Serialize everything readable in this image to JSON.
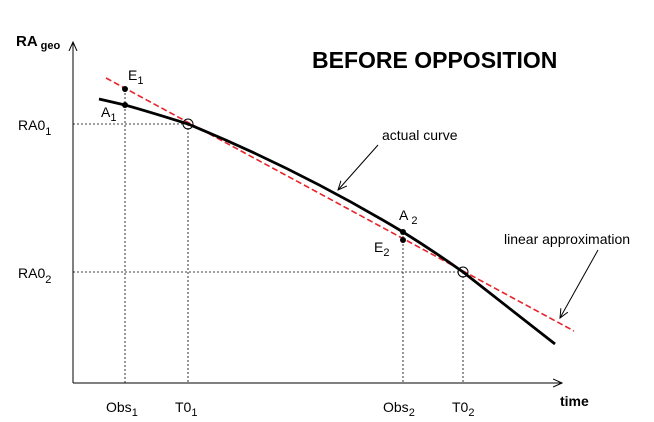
{
  "heading": "BEFORE OPPOSITION",
  "y_axis": {
    "label": "RA",
    "subscript": "geo"
  },
  "x_axis": {
    "label": "time"
  },
  "y_ticks": [
    {
      "main": "RA0",
      "sub": "1"
    },
    {
      "main": "RA0",
      "sub": "2"
    }
  ],
  "x_ticks": [
    {
      "main": "Obs",
      "sub": "1"
    },
    {
      "main": "T0",
      "sub": "1"
    },
    {
      "main": "Obs",
      "sub": "2"
    },
    {
      "main": "T0",
      "sub": "2"
    }
  ],
  "points": [
    {
      "main": "E",
      "sub": "1"
    },
    {
      "main": "A",
      "sub": "1"
    },
    {
      "main": "A",
      "sub": "2"
    },
    {
      "main": "E",
      "sub": "2"
    }
  ],
  "annotations": {
    "actual_curve": "actual curve",
    "linear_approx": "linear approximation"
  },
  "colors": {
    "actual_curve": "#000000",
    "linear_approx": "#e8232a",
    "axes": "#000000",
    "guides": "#000000"
  }
}
